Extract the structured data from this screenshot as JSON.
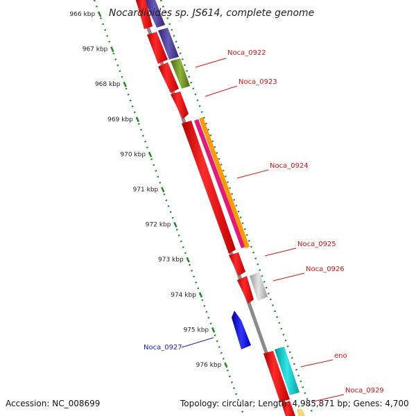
{
  "title": "Nocardioides sp. JS614, complete genome",
  "accession": "Accession: NC_008699",
  "topology": "Topology: circular; Length: 4,985,871 bp; Genes: 4,700",
  "kbp_labels": [
    "966 kbp",
    "967 kbp",
    "968 kbp",
    "969 kbp",
    "970 kbp",
    "971 kbp",
    "972 kbp",
    "973 kbp",
    "974 kbp",
    "975 kbp",
    "976 kbp"
  ],
  "gene_labels": [
    {
      "name": "Noca_0922",
      "color": "#dd1111"
    },
    {
      "name": "Noca_0923",
      "color": "#dd1111"
    },
    {
      "name": "Noca_0924",
      "color": "#dd1111"
    },
    {
      "name": "Noca_0925",
      "color": "#dd1111"
    },
    {
      "name": "Noca_0926",
      "color": "#dd1111"
    },
    {
      "name": "Noca_0927",
      "color": "#1a1acc"
    },
    {
      "name": "eno",
      "color": "#dd1111"
    },
    {
      "name": "Noca_0929",
      "color": "#dd1111"
    }
  ],
  "colors": {
    "cds": "#ff0000",
    "backbone": "#8a8a8a",
    "ticks": "#1f8a1f",
    "purple": "#4a3d8f",
    "olive": "#6b8e23",
    "magenta": "#e6187a",
    "orange": "#ff9a00",
    "gray": "#bdbdbd",
    "blue": "#0000ee",
    "cyan": "#00cccc"
  }
}
